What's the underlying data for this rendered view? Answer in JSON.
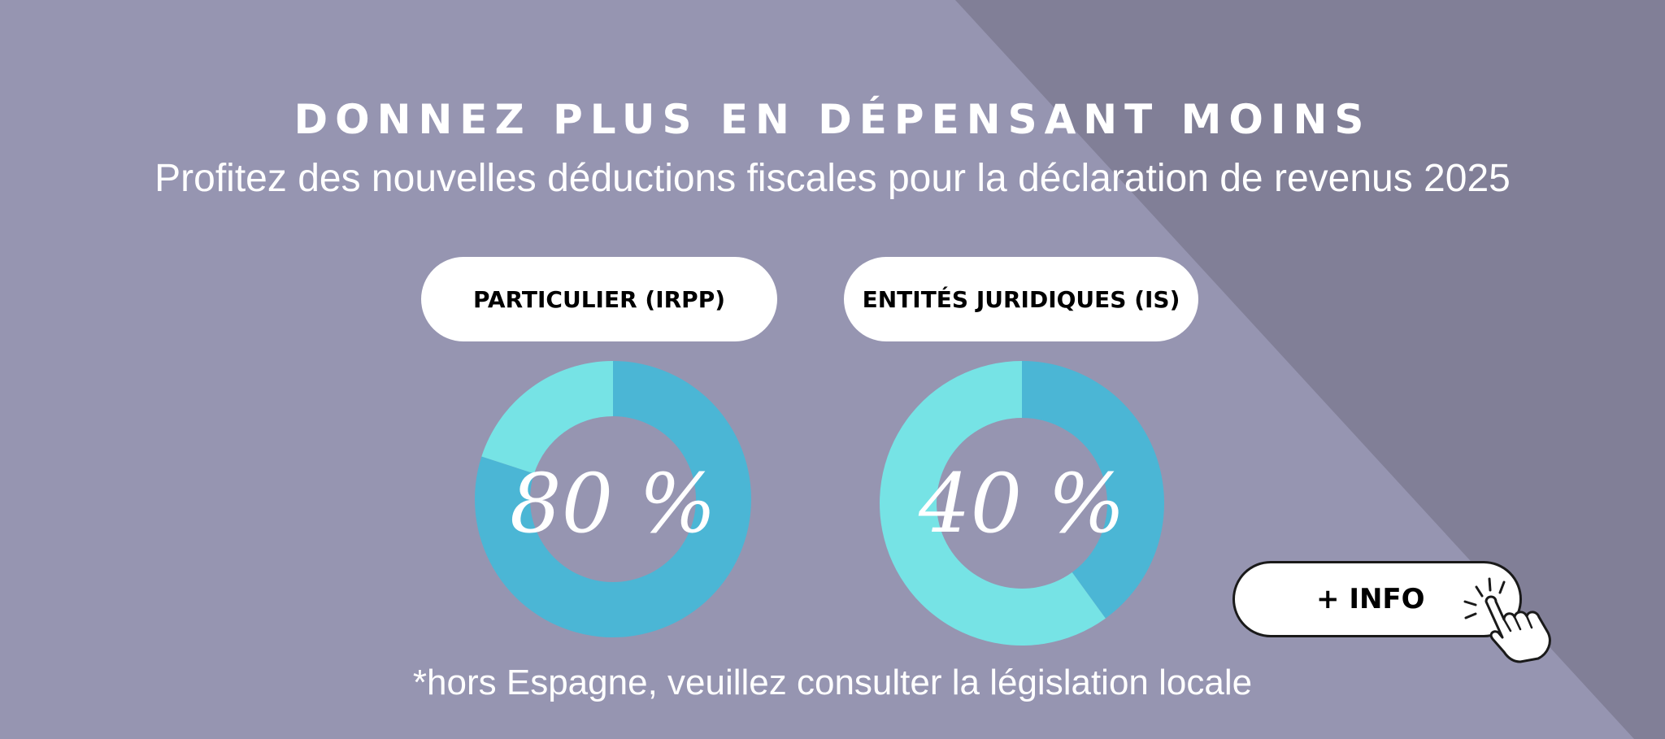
{
  "header": {
    "title": "DONNEZ PLUS EN DÉPENSANT MOINS",
    "subtitle": "Profitez des nouvelles déductions fiscales pour la déclaration de revenus 2025"
  },
  "colors": {
    "background": "#9695b1",
    "diagonal_panel": "#817f97",
    "donut_dark": "#4bb6d5",
    "donut_light": "#76e3e5",
    "pill": "#ffffff"
  },
  "chart_data": [
    {
      "type": "pie",
      "title": "PARTICULIER (IRPP)",
      "center_label": "80 %",
      "values": [
        80,
        20
      ],
      "colors": [
        "#4bb6d5",
        "#76e3e5"
      ]
    },
    {
      "type": "pie",
      "title": "ENTITÉS JURIDIQUES (IS)",
      "center_label": "40 %",
      "values": [
        40,
        60
      ],
      "colors": [
        "#4bb6d5",
        "#76e3e5"
      ]
    }
  ],
  "footnote": "*hors Espagne, veuillez consulter la législation locale",
  "cta": {
    "label": "+ INFO",
    "icon": "pointing-hand-icon"
  }
}
